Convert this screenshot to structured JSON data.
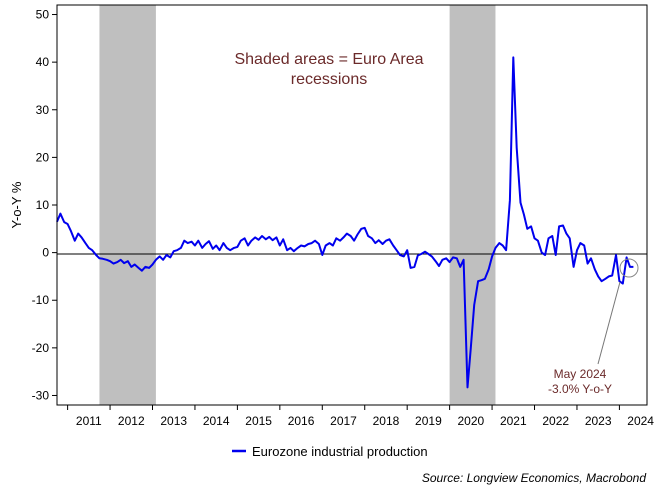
{
  "chart_data": {
    "type": "line",
    "ylabel": "Y-o-Y %",
    "ylim": [
      -32,
      52
    ],
    "yticks": [
      50,
      40,
      30,
      20,
      10,
      0,
      -10,
      -20,
      -30
    ],
    "x_start_year": 2010.75,
    "x_end_year": 2024.65,
    "year_labels": [
      "2011",
      "2012",
      "2013",
      "2014",
      "2015",
      "2016",
      "2017",
      "2018",
      "2019",
      "2020",
      "2021",
      "2022",
      "2023",
      "2024"
    ],
    "recessions": [
      {
        "start": 2011.75,
        "end": 2013.08,
        "label": "2011-2013 recession"
      },
      {
        "start": 2020.0,
        "end": 2021.08,
        "label": "2020 recession"
      }
    ],
    "annotations": {
      "shading_note_line1": "Shaded areas = Euro Area",
      "shading_note_line2": "recessions",
      "callout_line1": "May 2024",
      "callout_line2": "-3.0% Y-o-Y"
    },
    "legend": [
      {
        "name": "Eurozone industrial production",
        "color": "#0000ee"
      }
    ],
    "source": "Source: Longview Economics, Macrobond",
    "series": [
      {
        "name": "Eurozone industrial production",
        "color": "#0000ee",
        "points": [
          [
            2010.75,
            6.5
          ],
          [
            2010.83,
            8.2
          ],
          [
            2010.92,
            6.4
          ],
          [
            2011.0,
            6.0
          ],
          [
            2011.08,
            4.5
          ],
          [
            2011.17,
            2.5
          ],
          [
            2011.25,
            4.0
          ],
          [
            2011.33,
            3.2
          ],
          [
            2011.42,
            2.0
          ],
          [
            2011.5,
            1.0
          ],
          [
            2011.58,
            0.5
          ],
          [
            2011.67,
            -0.5
          ],
          [
            2011.75,
            -1.2
          ],
          [
            2011.83,
            -1.3
          ],
          [
            2011.92,
            -1.5
          ],
          [
            2012.0,
            -1.8
          ],
          [
            2012.08,
            -2.3
          ],
          [
            2012.17,
            -2.0
          ],
          [
            2012.25,
            -1.5
          ],
          [
            2012.33,
            -2.2
          ],
          [
            2012.42,
            -1.8
          ],
          [
            2012.5,
            -3.0
          ],
          [
            2012.58,
            -2.5
          ],
          [
            2012.67,
            -3.2
          ],
          [
            2012.75,
            -3.8
          ],
          [
            2012.83,
            -3.0
          ],
          [
            2012.92,
            -3.2
          ],
          [
            2013.0,
            -2.5
          ],
          [
            2013.08,
            -1.5
          ],
          [
            2013.17,
            -0.8
          ],
          [
            2013.25,
            -1.5
          ],
          [
            2013.33,
            -0.5
          ],
          [
            2013.42,
            -1.0
          ],
          [
            2013.5,
            0.3
          ],
          [
            2013.58,
            0.5
          ],
          [
            2013.67,
            1.0
          ],
          [
            2013.75,
            2.5
          ],
          [
            2013.83,
            2.0
          ],
          [
            2013.92,
            2.3
          ],
          [
            2014.0,
            1.5
          ],
          [
            2014.08,
            2.5
          ],
          [
            2014.17,
            1.0
          ],
          [
            2014.25,
            1.8
          ],
          [
            2014.33,
            2.4
          ],
          [
            2014.42,
            0.8
          ],
          [
            2014.5,
            1.5
          ],
          [
            2014.58,
            0.5
          ],
          [
            2014.67,
            2.0
          ],
          [
            2014.75,
            1.0
          ],
          [
            2014.83,
            0.5
          ],
          [
            2014.92,
            1.0
          ],
          [
            2015.0,
            1.2
          ],
          [
            2015.08,
            2.5
          ],
          [
            2015.17,
            3.0
          ],
          [
            2015.25,
            1.5
          ],
          [
            2015.33,
            2.5
          ],
          [
            2015.42,
            3.2
          ],
          [
            2015.5,
            2.7
          ],
          [
            2015.58,
            3.5
          ],
          [
            2015.67,
            2.8
          ],
          [
            2015.75,
            3.3
          ],
          [
            2015.83,
            2.6
          ],
          [
            2015.92,
            3.2
          ],
          [
            2016.0,
            1.5
          ],
          [
            2016.08,
            2.8
          ],
          [
            2016.17,
            0.5
          ],
          [
            2016.25,
            1.0
          ],
          [
            2016.33,
            0.3
          ],
          [
            2016.42,
            1.0
          ],
          [
            2016.5,
            1.5
          ],
          [
            2016.58,
            1.3
          ],
          [
            2016.67,
            1.8
          ],
          [
            2016.75,
            2.0
          ],
          [
            2016.83,
            2.5
          ],
          [
            2016.92,
            1.8
          ],
          [
            2017.0,
            -0.5
          ],
          [
            2017.08,
            1.5
          ],
          [
            2017.17,
            2.0
          ],
          [
            2017.25,
            1.5
          ],
          [
            2017.33,
            3.0
          ],
          [
            2017.42,
            2.5
          ],
          [
            2017.5,
            3.2
          ],
          [
            2017.58,
            4.0
          ],
          [
            2017.67,
            3.5
          ],
          [
            2017.75,
            2.5
          ],
          [
            2017.83,
            3.8
          ],
          [
            2017.92,
            5.0
          ],
          [
            2018.0,
            5.2
          ],
          [
            2018.08,
            3.5
          ],
          [
            2018.17,
            3.0
          ],
          [
            2018.25,
            2.0
          ],
          [
            2018.33,
            2.6
          ],
          [
            2018.42,
            1.8
          ],
          [
            2018.5,
            2.5
          ],
          [
            2018.58,
            2.8
          ],
          [
            2018.67,
            1.5
          ],
          [
            2018.75,
            0.5
          ],
          [
            2018.83,
            -0.5
          ],
          [
            2018.92,
            -0.8
          ],
          [
            2019.0,
            0.5
          ],
          [
            2019.08,
            -3.2
          ],
          [
            2019.17,
            -3.0
          ],
          [
            2019.25,
            -0.6
          ],
          [
            2019.33,
            -0.3
          ],
          [
            2019.42,
            0.2
          ],
          [
            2019.5,
            -0.3
          ],
          [
            2019.58,
            -0.8
          ],
          [
            2019.67,
            -1.8
          ],
          [
            2019.75,
            -2.8
          ],
          [
            2019.83,
            -1.5
          ],
          [
            2019.92,
            -1.2
          ],
          [
            2020.0,
            -2.0
          ],
          [
            2020.08,
            -1.0
          ],
          [
            2020.17,
            -1.2
          ],
          [
            2020.25,
            -3.0
          ],
          [
            2020.33,
            -1.5
          ],
          [
            2020.42,
            -28.3
          ],
          [
            2020.5,
            -20.0
          ],
          [
            2020.58,
            -11.0
          ],
          [
            2020.67,
            -6.0
          ],
          [
            2020.75,
            -5.8
          ],
          [
            2020.83,
            -5.5
          ],
          [
            2020.92,
            -3.5
          ],
          [
            2021.0,
            -0.8
          ],
          [
            2021.08,
            1.0
          ],
          [
            2021.17,
            2.0
          ],
          [
            2021.25,
            1.5
          ],
          [
            2021.33,
            0.5
          ],
          [
            2021.42,
            11.0
          ],
          [
            2021.5,
            41.0
          ],
          [
            2021.58,
            22.0
          ],
          [
            2021.67,
            10.5
          ],
          [
            2021.75,
            8.0
          ],
          [
            2021.83,
            5.0
          ],
          [
            2021.92,
            5.5
          ],
          [
            2022.0,
            3.0
          ],
          [
            2022.08,
            2.5
          ],
          [
            2022.17,
            0.0
          ],
          [
            2022.25,
            -0.5
          ],
          [
            2022.33,
            3.0
          ],
          [
            2022.42,
            3.5
          ],
          [
            2022.5,
            -0.5
          ],
          [
            2022.58,
            5.5
          ],
          [
            2022.67,
            5.7
          ],
          [
            2022.75,
            4.0
          ],
          [
            2022.83,
            3.0
          ],
          [
            2022.92,
            -3.0
          ],
          [
            2023.0,
            0.5
          ],
          [
            2023.08,
            2.0
          ],
          [
            2023.17,
            1.5
          ],
          [
            2023.25,
            -2.3
          ],
          [
            2023.33,
            -1.2
          ],
          [
            2023.42,
            -3.5
          ],
          [
            2023.5,
            -5.0
          ],
          [
            2023.58,
            -6.0
          ],
          [
            2023.67,
            -5.5
          ],
          [
            2023.75,
            -5.0
          ],
          [
            2023.83,
            -4.8
          ],
          [
            2023.92,
            -0.5
          ],
          [
            2024.0,
            -6.0
          ],
          [
            2024.08,
            -6.5
          ],
          [
            2024.17,
            -1.0
          ],
          [
            2024.25,
            -3.0
          ],
          [
            2024.33,
            -3.0
          ]
        ]
      }
    ]
  }
}
